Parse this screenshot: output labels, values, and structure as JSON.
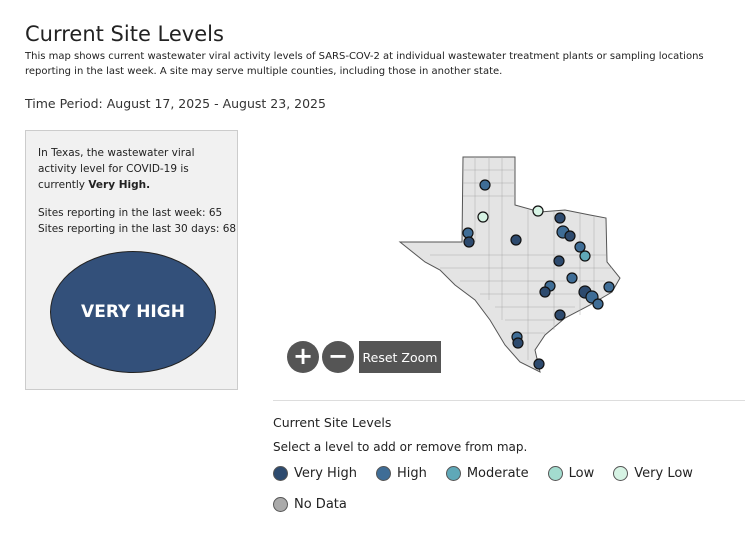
{
  "header": {
    "title": "Current Site Levels",
    "description": "This map shows current wastewater viral activity levels of SARS-COV-2 at individual wastewater treatment plants or sampling locations reporting in the last week. A site may serve multiple counties, including those in another state.",
    "time_period": "Time Period: August 17, 2025 - August 23, 2025"
  },
  "summary": {
    "intro": "In Texas, the wastewater viral activity level for COVID-19 is currently",
    "level": "Very High.",
    "sites_week": {
      "label": "Sites reporting in the last week:",
      "value": 65
    },
    "sites_month": {
      "label": "Sites reporting in the last 30 days:",
      "value": 68
    },
    "badge": "VERY HIGH",
    "badge_color": "#33507a"
  },
  "map": {
    "zoom_in": "+",
    "zoom_out": "−",
    "reset": "Reset Zoom"
  },
  "legend": {
    "title": "Current Site Levels",
    "instruction": "Select a level to add or remove from map.",
    "items": [
      {
        "label": "Very High",
        "color": "#2d4a6e"
      },
      {
        "label": "High",
        "color": "#3f6d96"
      },
      {
        "label": "Moderate",
        "color": "#5fa8b8"
      },
      {
        "label": "Low",
        "color": "#a3dccf"
      },
      {
        "label": "Very Low",
        "color": "#d6f3e4"
      },
      {
        "label": "No Data",
        "color": "#aaaaaa"
      }
    ]
  }
}
